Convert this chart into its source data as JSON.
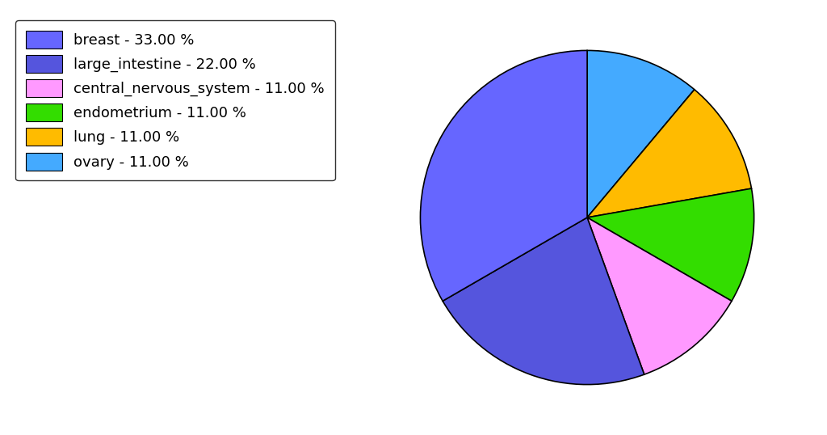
{
  "labels": [
    "breast",
    "large_intestine",
    "central_nervous_system",
    "endometrium",
    "lung",
    "ovary"
  ],
  "values": [
    33.0,
    22.0,
    11.0,
    11.0,
    11.0,
    11.0
  ],
  "colors": [
    "#6666ff",
    "#5555dd",
    "#ff99ff",
    "#33dd00",
    "#ffbb00",
    "#44aaff"
  ],
  "legend_labels": [
    "breast - 33.00 %",
    "large_intestine - 22.00 %",
    "central_nervous_system - 11.00 %",
    "endometrium - 11.00 %",
    "lung - 11.00 %",
    "ovary - 11.00 %"
  ],
  "pie_order": [
    5,
    4,
    3,
    2,
    1,
    0
  ],
  "startangle": 90,
  "figsize": [
    10.24,
    5.38
  ],
  "dpi": 100,
  "background_color": "#ffffff",
  "legend_fontsize": 13,
  "aspect": "equal"
}
